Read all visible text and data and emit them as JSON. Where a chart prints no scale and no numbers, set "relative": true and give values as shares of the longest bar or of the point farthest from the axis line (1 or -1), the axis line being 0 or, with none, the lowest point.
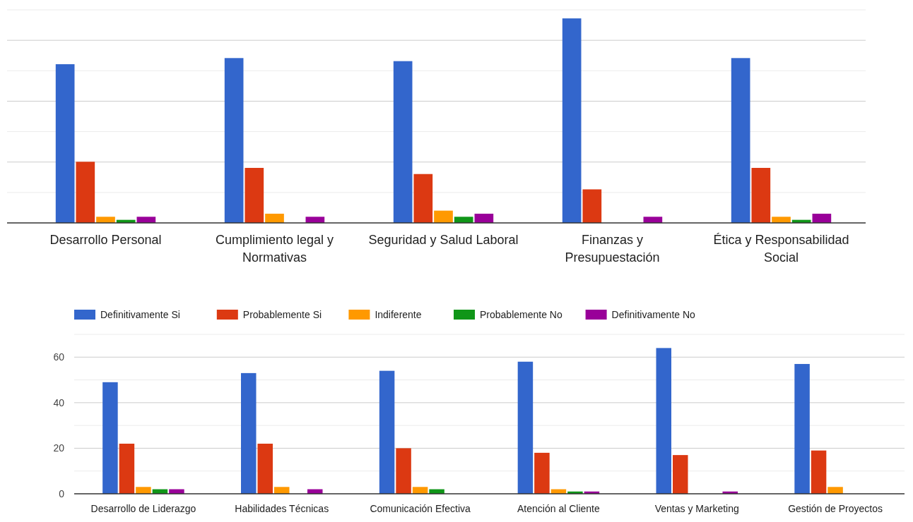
{
  "chart_data": [
    {
      "type": "bar",
      "relative": true,
      "grid": true,
      "categories": [
        "Desarrollo Personal",
        "Cumplimiento legal y Normativas",
        "Seguridad y Salud Laboral",
        "Finanzas y Presupuestación",
        "Ética y Responsabilidad Social"
      ],
      "series": [
        {
          "color": "#3366cc",
          "values": [
            0.776,
            0.806,
            0.791,
            1,
            0.806
          ]
        },
        {
          "color": "#dc3912",
          "values": [
            0.299,
            0.269,
            0.239,
            0.164,
            0.269
          ]
        },
        {
          "color": "#ff9900",
          "values": [
            0.03,
            0.045,
            0.06,
            0,
            0.03
          ]
        },
        {
          "color": "#109618",
          "values": [
            0.015,
            0,
            0.03,
            0,
            0.015
          ]
        },
        {
          "color": "#990099",
          "values": [
            0.03,
            0.03,
            0.045,
            0.03,
            0.045
          ]
        }
      ]
    },
    {
      "type": "bar",
      "grid": true,
      "legend": "top",
      "categories": [
        "Desarrollo de Liderazgo",
        "Habilidades Técnicas",
        "Comunicación Efectiva",
        "Atención al Cliente",
        "Ventas y Marketing",
        "Gestión de Proyectos"
      ],
      "ylim": [
        0,
        70
      ],
      "yticks": [
        0,
        {
          "value": 10,
          "label": null
        },
        20,
        {
          "value": 30,
          "label": null
        },
        40,
        {
          "value": 50,
          "label": null
        },
        60,
        {
          "value": 70,
          "label": null
        }
      ],
      "series": [
        {
          "name": "Definitivamente Si",
          "color": "#3366cc",
          "values": [
            49,
            53,
            54,
            58,
            64,
            57
          ]
        },
        {
          "name": "Probablemente Si",
          "color": "#dc3912",
          "values": [
            22,
            22,
            20,
            18,
            17,
            19
          ]
        },
        {
          "name": "Indiferente",
          "color": "#ff9900",
          "values": [
            3,
            3,
            3,
            2,
            0,
            3
          ]
        },
        {
          "name": "Probablemente No",
          "color": "#109618",
          "values": [
            2,
            0,
            2,
            1,
            0,
            0
          ]
        },
        {
          "name": "Definitivamente No",
          "color": "#990099",
          "values": [
            2,
            2,
            0,
            1,
            1,
            0
          ]
        }
      ]
    }
  ]
}
